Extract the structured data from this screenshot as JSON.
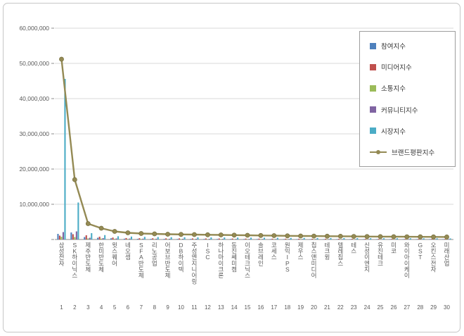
{
  "axis": {
    "y_ticks": [
      "60,000,000",
      "50,000,000",
      "40,000,000",
      "30,000,000",
      "20,000,000",
      "10,000,000"
    ],
    "ylim": [
      0,
      60000000
    ]
  },
  "chart_data": {
    "type": "bar",
    "subtype": "grouped-bars-with-line-overlay",
    "title": "",
    "xlabel": "",
    "ylabel": "",
    "ylim": [
      0,
      60000000
    ],
    "grid": true,
    "legend_position": "right-top",
    "categories": [
      "삼성전자",
      "SK하이닉스",
      "제주반도체",
      "한미반도체",
      "윗스퀘어",
      "네오셈",
      "SFA반도체",
      "리노공업",
      "어보브반도체",
      "DB하이텍",
      "주성엔지니어링",
      "ISC",
      "하나마이크론",
      "동진쎄미켐",
      "이오테크닉스",
      "솔브레인",
      "코세스",
      "원익IPS",
      "제우스",
      "칩스앤미디어",
      "테크윙",
      "텔레칩스",
      "테스",
      "신성이엔지",
      "유진테크",
      "미코",
      "와이아이케이",
      "GST",
      "오킨스전자",
      "미래산업"
    ],
    "category_indices": [
      "1",
      "2",
      "3",
      "4",
      "5",
      "6",
      "7",
      "8",
      "9",
      "10",
      "11",
      "12",
      "13",
      "14",
      "15",
      "16",
      "17",
      "18",
      "19",
      "20",
      "21",
      "22",
      "23",
      "24",
      "25",
      "26",
      "27",
      "28",
      "29",
      "30"
    ],
    "series": [
      {
        "name": "참여지수",
        "type": "bar",
        "color": "#4F81BD",
        "values": [
          1600000,
          2000000,
          700000,
          500000,
          350000,
          230000,
          200000,
          190000,
          180000,
          170000,
          170000,
          160000,
          160000,
          150000,
          140000,
          140000,
          130000,
          130000,
          120000,
          120000,
          110000,
          110000,
          110000,
          100000,
          100000,
          100000,
          90000,
          90000,
          90000,
          90000
        ]
      },
      {
        "name": "미디어지수",
        "type": "bar",
        "color": "#C0504D",
        "values": [
          1100000,
          1500000,
          1200000,
          800000,
          550000,
          420000,
          370000,
          350000,
          330000,
          320000,
          310000,
          300000,
          290000,
          280000,
          260000,
          250000,
          240000,
          230000,
          220000,
          210000,
          210000,
          200000,
          190000,
          190000,
          180000,
          180000,
          170000,
          170000,
          160000,
          160000
        ]
      },
      {
        "name": "소통지수",
        "type": "bar",
        "color": "#9BBB59",
        "values": [
          800000,
          700000,
          300000,
          250000,
          180000,
          150000,
          140000,
          130000,
          120000,
          120000,
          110000,
          110000,
          100000,
          100000,
          100000,
          90000,
          90000,
          80000,
          80000,
          80000,
          70000,
          70000,
          70000,
          70000,
          70000,
          60000,
          60000,
          60000,
          60000,
          60000
        ]
      },
      {
        "name": "커뮤니티지수",
        "type": "bar",
        "color": "#8064A2",
        "values": [
          2100000,
          2300000,
          500000,
          400000,
          300000,
          270000,
          240000,
          220000,
          210000,
          200000,
          200000,
          190000,
          180000,
          170000,
          170000,
          160000,
          150000,
          150000,
          140000,
          140000,
          130000,
          130000,
          120000,
          120000,
          110000,
          110000,
          110000,
          110000,
          100000,
          100000
        ]
      },
      {
        "name": "시장지수",
        "type": "bar",
        "color": "#4BACC6",
        "values": [
          45600000,
          10500000,
          1800000,
          1250000,
          920000,
          830000,
          750000,
          710000,
          660000,
          640000,
          610000,
          590000,
          570000,
          550000,
          530000,
          510000,
          490000,
          460000,
          440000,
          420000,
          420000,
          400000,
          390000,
          370000,
          360000,
          350000,
          350000,
          330000,
          330000,
          310000
        ]
      },
      {
        "name": "브랜드평판지수",
        "type": "line",
        "color": "#948A54",
        "marker_outline": "#6f6838",
        "values": [
          51200000,
          17000000,
          4500000,
          3200000,
          2300000,
          1900000,
          1700000,
          1600000,
          1500000,
          1450000,
          1400000,
          1350000,
          1300000,
          1250000,
          1200000,
          1150000,
          1100000,
          1050000,
          1000000,
          970000,
          940000,
          910000,
          880000,
          850000,
          820000,
          800000,
          780000,
          760000,
          740000,
          720000
        ]
      }
    ],
    "colors": {
      "gridline": "#d9d9d9",
      "axis_line": "#8c8c8c",
      "tick_label": "#595959",
      "legend_border": "#9d9d9d",
      "background": "#ffffff"
    }
  }
}
